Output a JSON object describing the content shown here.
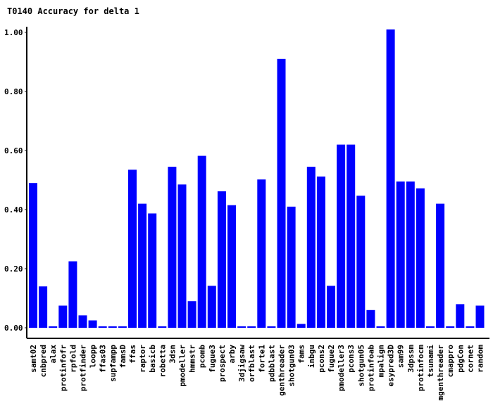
{
  "chart_data": {
    "type": "bar",
    "title": "T0140 Accuracy for delta 1",
    "xlabel": "",
    "ylabel": "",
    "ylim": [
      0,
      1.0
    ],
    "yticks": [
      "0.00",
      "0.20",
      "0.40",
      "0.60",
      "0.80",
      "1.00"
    ],
    "grid": false,
    "bar_color": "#0000ff",
    "categories": [
      "samt02",
      "cnbpred",
      "alax",
      "protinfofr",
      "rpfold",
      "protfinder",
      "loopp",
      "ffas03",
      "supfampp",
      "famsD",
      "ffas",
      "raptor",
      "basicb",
      "robetta",
      "3dsn",
      "pmodeller",
      "hmmstr",
      "pcomb",
      "fugue3",
      "prospect",
      "arby",
      "3djigsaw",
      "orfblast",
      "forte1",
      "pdbblast",
      "genthreader",
      "shotgun03",
      "fams",
      "inbgu",
      "pcons2",
      "fugue2",
      "pmodeller3",
      "pcons3",
      "shotgun05",
      "protinfoab",
      "mpalign",
      "esypred3D",
      "sam99",
      "3dpssm",
      "protinfocm",
      "tsunami",
      "mgenthreader",
      "cmappro",
      "pdgCon",
      "cornet",
      "random"
    ],
    "values": [
      0.49,
      0.14,
      0.005,
      0.075,
      0.225,
      0.042,
      0.025,
      0.005,
      0.005,
      0.005,
      0.535,
      0.42,
      0.387,
      0.005,
      0.545,
      0.485,
      0.09,
      0.582,
      0.142,
      0.462,
      0.415,
      0.005,
      0.005,
      0.502,
      0.005,
      0.91,
      0.41,
      0.013,
      0.545,
      0.512,
      0.142,
      0.62,
      0.62,
      0.447,
      0.06,
      0.005,
      1.01,
      0.495,
      0.495,
      0.472,
      0.005,
      0.42,
      0.005,
      0.08,
      0.005,
      0.075
    ]
  }
}
